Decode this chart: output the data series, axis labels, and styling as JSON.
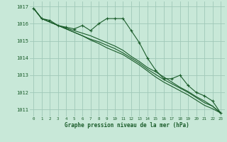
{
  "background_color": "#c8e8d8",
  "plot_bg_color": "#c8e8d8",
  "grid_color": "#a0c8b8",
  "line_color": "#1a5c2a",
  "text_color": "#1a5c2a",
  "xlabel": "Graphe pression niveau de la mer (hPa)",
  "xlim": [
    -0.5,
    23.5
  ],
  "ylim": [
    1010.6,
    1017.3
  ],
  "yticks": [
    1011,
    1012,
    1013,
    1014,
    1015,
    1016,
    1017
  ],
  "xticks": [
    0,
    1,
    2,
    3,
    4,
    5,
    6,
    7,
    8,
    9,
    10,
    11,
    12,
    13,
    14,
    15,
    16,
    17,
    18,
    19,
    20,
    21,
    22,
    23
  ],
  "series": [
    [
      1016.9,
      1016.3,
      1016.2,
      1015.9,
      1015.8,
      1015.7,
      1015.9,
      1015.6,
      1016.0,
      1016.3,
      1016.3,
      1016.3,
      1015.6,
      1014.9,
      1014.0,
      1013.3,
      1012.8,
      1012.8,
      1013.0,
      1012.4,
      1012.0,
      1011.8,
      1011.5,
      1010.8
    ],
    [
      1016.9,
      1016.3,
      1016.1,
      1015.9,
      1015.75,
      1015.6,
      1015.45,
      1015.3,
      1015.1,
      1014.9,
      1014.7,
      1014.45,
      1014.1,
      1013.8,
      1013.45,
      1013.2,
      1012.9,
      1012.6,
      1012.3,
      1012.05,
      1011.75,
      1011.5,
      1011.2,
      1010.8
    ],
    [
      1016.9,
      1016.3,
      1016.1,
      1015.9,
      1015.7,
      1015.5,
      1015.3,
      1015.1,
      1014.95,
      1014.75,
      1014.55,
      1014.3,
      1014.0,
      1013.7,
      1013.35,
      1013.05,
      1012.75,
      1012.5,
      1012.25,
      1012.0,
      1011.7,
      1011.4,
      1011.2,
      1010.8
    ],
    [
      1016.9,
      1016.3,
      1016.1,
      1015.9,
      1015.7,
      1015.5,
      1015.3,
      1015.05,
      1014.85,
      1014.6,
      1014.4,
      1014.2,
      1013.9,
      1013.6,
      1013.25,
      1012.9,
      1012.6,
      1012.35,
      1012.1,
      1011.85,
      1011.55,
      1011.25,
      1011.05,
      1010.8
    ]
  ]
}
